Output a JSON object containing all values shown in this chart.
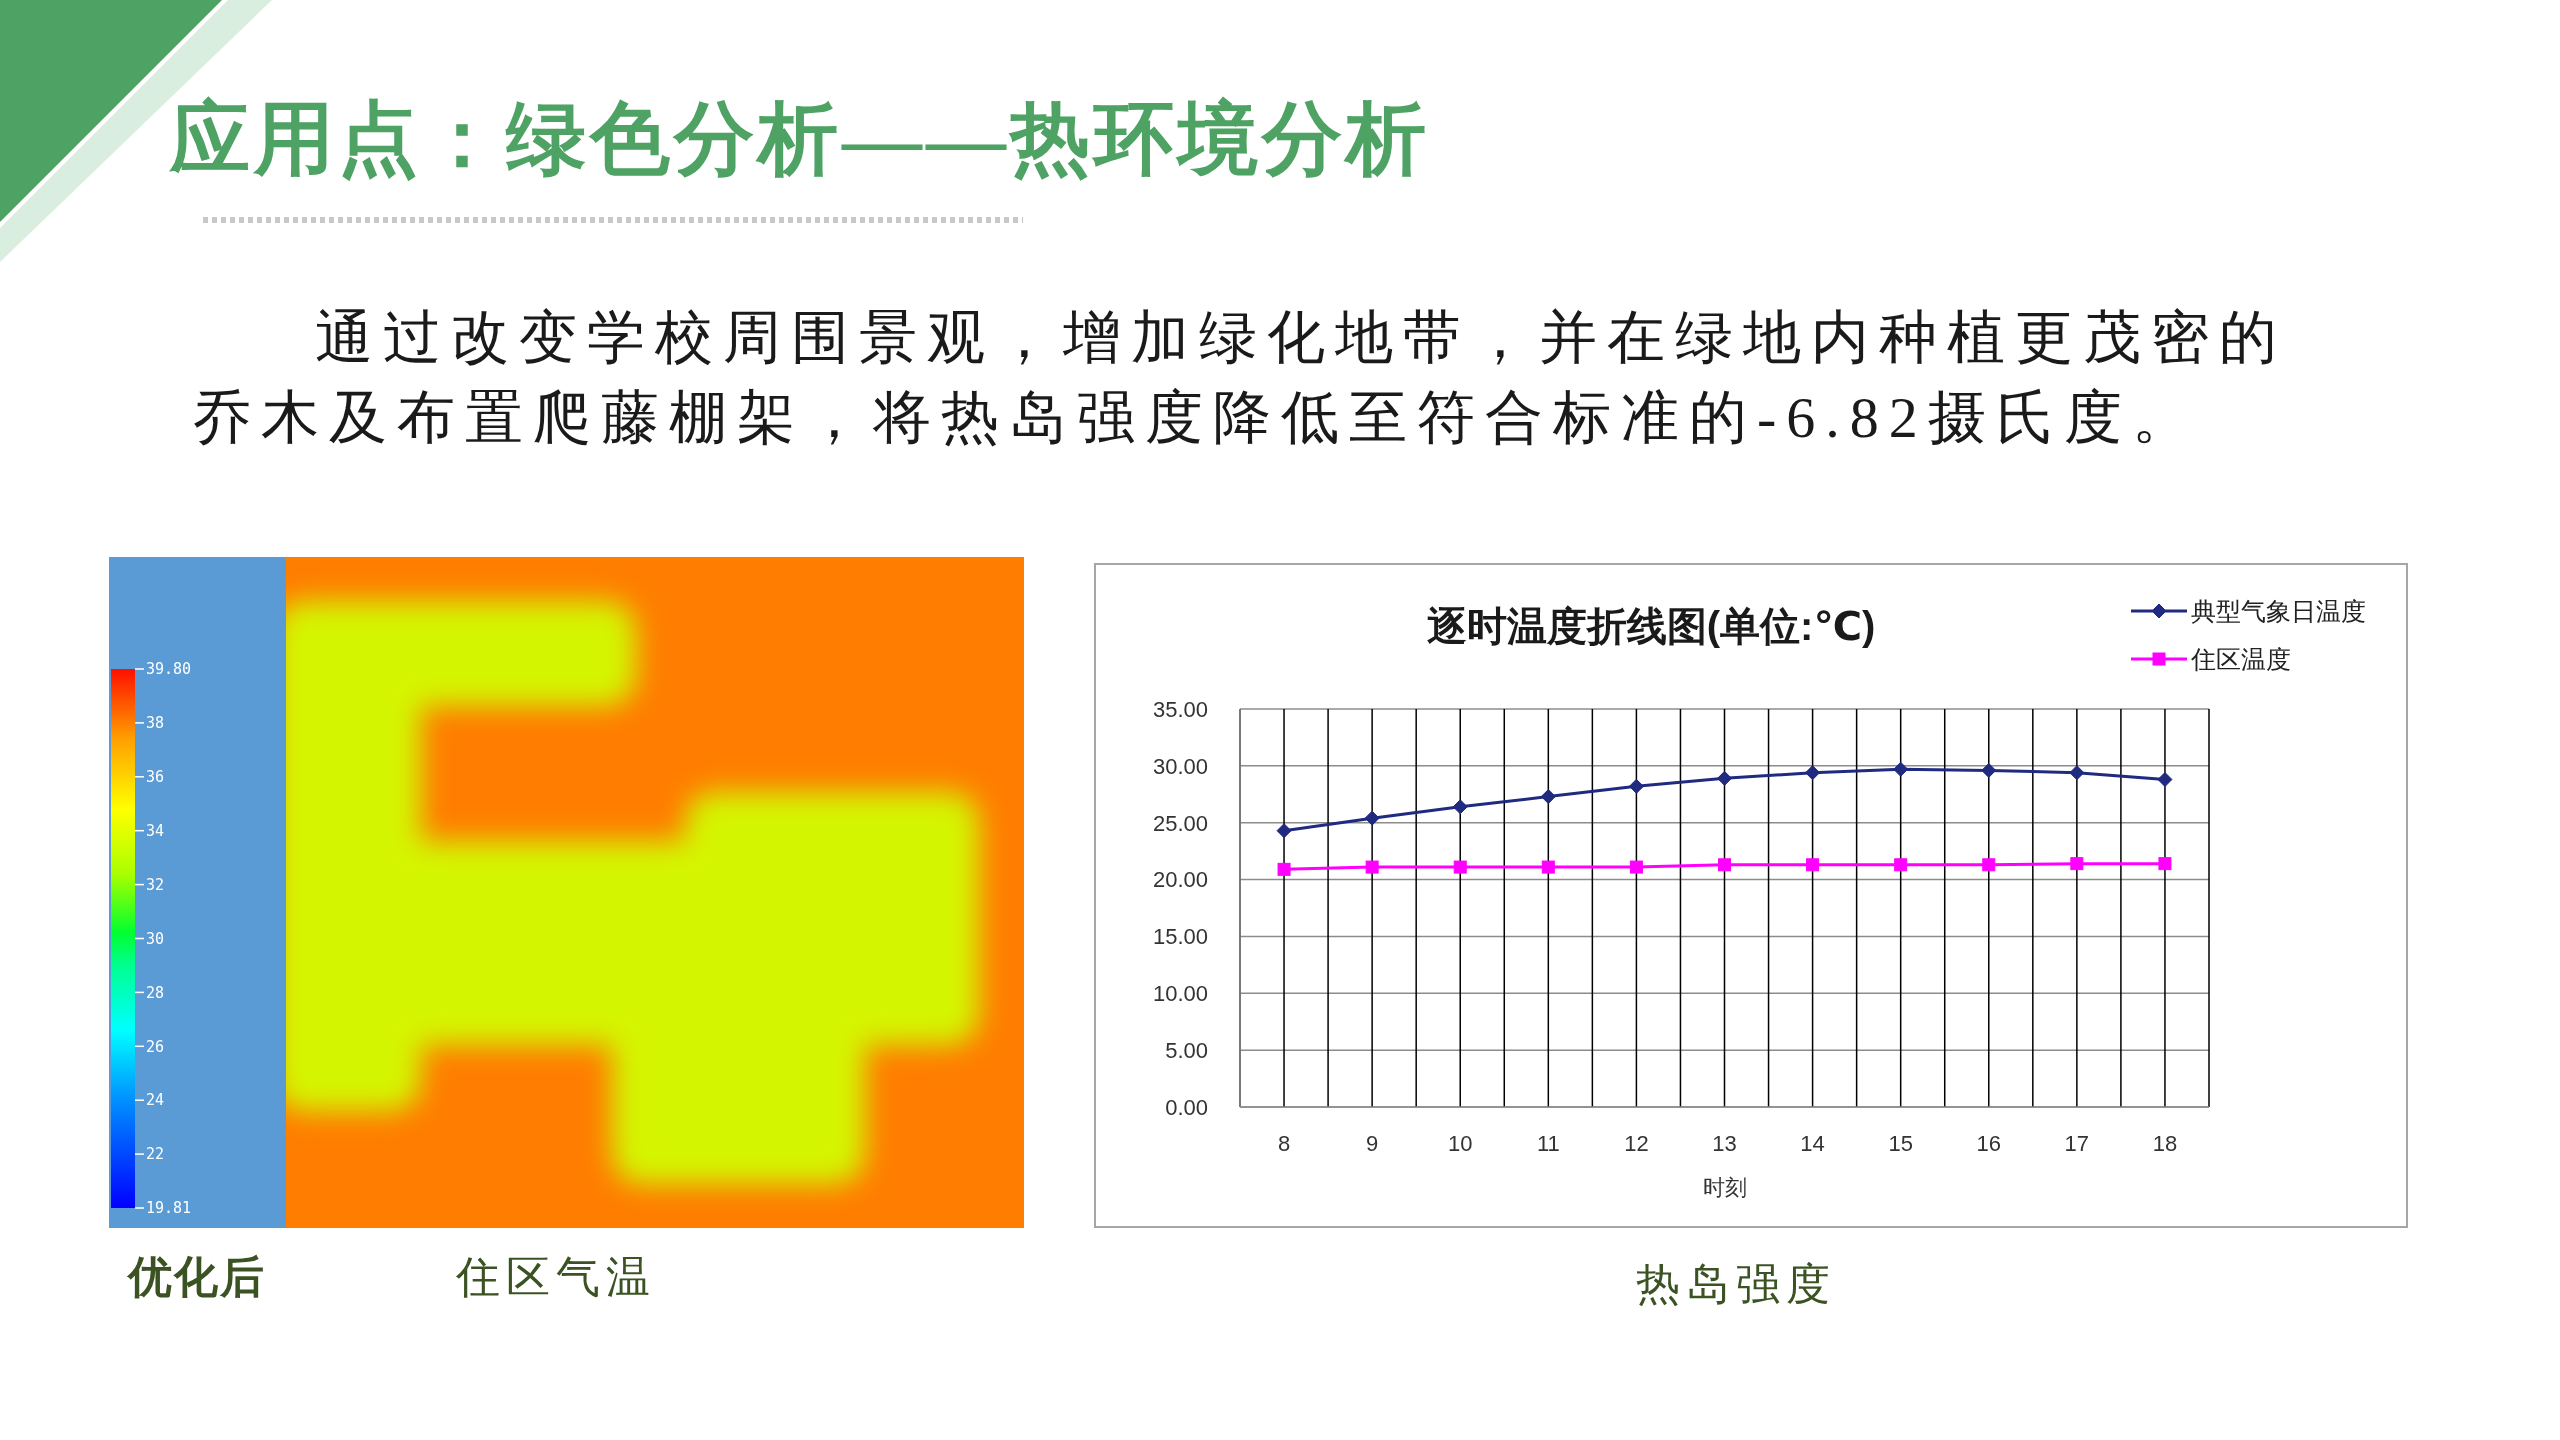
{
  "chart_data": [
    {
      "type": "other",
      "title": "应用点：绿色分析——热环境分析",
      "subtitle": "通过改变学校周围景观，增加绿化地带，并在绿地内种植更茂密的乔木及布置爬藤棚架，将热岛强度降低至符合标准的-6.82摄氏度。"
    },
    {
      "type": "other",
      "title": "优化后",
      "subtitle": "住区气温",
      "annotations": [
        "39.80",
        "38",
        "36",
        "34",
        "32",
        "30",
        "28",
        "26",
        "24",
        "22",
        "19.81"
      ]
    },
    {
      "type": "line",
      "title": "逐时温度折线图(单位:℃)",
      "xlabel": "时刻",
      "categories": [
        "8",
        "9",
        "10",
        "11",
        "12",
        "13",
        "14",
        "15",
        "16",
        "17",
        "18"
      ],
      "series": [
        {
          "name": "典型气象日温度",
          "color": "#1f2a80",
          "marker": "diamond",
          "values": [
            24.3,
            25.4,
            26.4,
            27.3,
            28.2,
            28.9,
            29.4,
            29.7,
            29.6,
            29.4,
            28.8
          ]
        },
        {
          "name": "住区温度",
          "color": "#ff00ff",
          "marker": "square",
          "values": [
            20.9,
            21.1,
            21.1,
            21.1,
            21.1,
            21.3,
            21.3,
            21.3,
            21.3,
            21.4,
            21.4
          ]
        }
      ],
      "ylim": [
        0,
        35
      ],
      "yticks": [
        {
          "value": 0,
          "label": "0.00"
        },
        {
          "value": 5,
          "label": "5.00"
        },
        {
          "value": 10,
          "label": "10.00"
        },
        {
          "value": 15,
          "label": "15.00"
        },
        {
          "value": 20,
          "label": "20.00"
        },
        {
          "value": 25,
          "label": "25.00"
        },
        {
          "value": 30,
          "label": "30.00"
        },
        {
          "value": 35,
          "label": "35.00"
        }
      ],
      "grid": true,
      "legend": "top right",
      "line_style": "solid",
      "annotations": [
        "热岛强度"
      ]
    }
  ]
}
